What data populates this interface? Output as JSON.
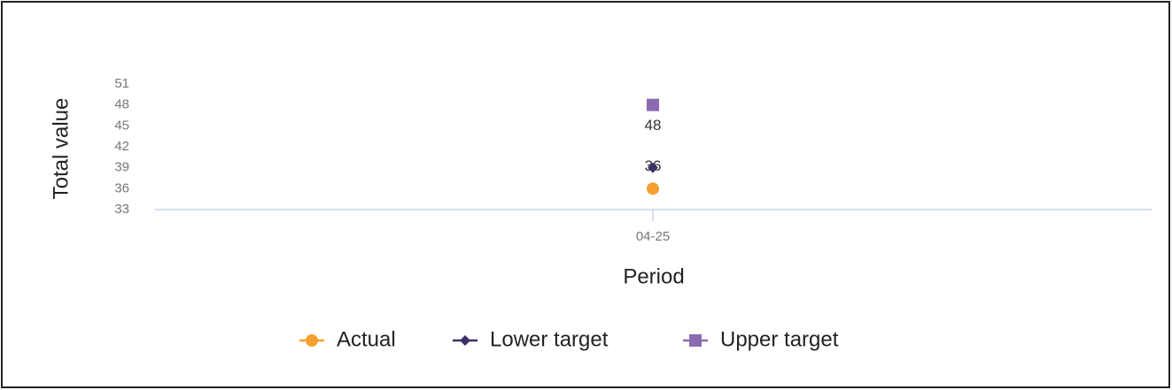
{
  "chart_data": {
    "type": "scatter",
    "x_label": "Period",
    "y_label": "Total value",
    "categories": [
      "04-25"
    ],
    "series": [
      {
        "name": "Actual",
        "color": "#f5a030",
        "marker": "circle",
        "values": [
          36
        ],
        "show_labels": true
      },
      {
        "name": "Lower target",
        "color": "#3d3068",
        "marker": "diamond",
        "values": [
          39
        ],
        "show_labels": false
      },
      {
        "name": "Upper target",
        "color": "#8a6bb0",
        "marker": "square",
        "values": [
          48
        ],
        "show_labels": true
      }
    ],
    "ylim": [
      33,
      51
    ],
    "yticks": [
      33,
      36,
      39,
      42,
      45,
      48,
      51
    ],
    "grid": false,
    "legend": "bottom"
  }
}
